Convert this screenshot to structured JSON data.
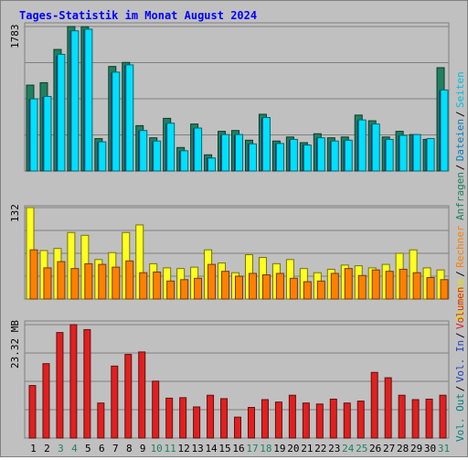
{
  "title": "Tages-Statistik im Monat August 2024",
  "colors": {
    "background": "#c0c0c0",
    "title": "#0000ff",
    "anfragen": "#208060",
    "dateien": "#00e0ff",
    "seiten": "#3060e0",
    "besuche": "#ffff20",
    "rechner": "#ff8000",
    "volumen": "#e02020",
    "weekend_day": "#208060",
    "weekday_day": "#000000"
  },
  "right_legend": {
    "top": [
      {
        "text": "Anfragen",
        "color": "#208060"
      },
      {
        "text": "Dateien",
        "color": "#0080c0"
      },
      {
        "text": "Seiten",
        "color": "#00c0e0"
      }
    ],
    "middle": [
      {
        "text": "Besuche",
        "color": "#e0e000"
      },
      {
        "text": "Rechner",
        "color": "#ff8000"
      }
    ],
    "bottom": [
      {
        "text": "Vol. Out",
        "color": "#008080"
      },
      {
        "text": "Vol. In",
        "color": "#2040c0"
      },
      {
        "text": "Volumen",
        "color": "#e02020"
      }
    ]
  },
  "chart_data": [
    {
      "type": "bar",
      "panel": "top",
      "ymax_label": "1783",
      "ylim": [
        0,
        1783
      ],
      "categories": [
        "1",
        "2",
        "3",
        "4",
        "5",
        "6",
        "7",
        "8",
        "9",
        "10",
        "11",
        "12",
        "13",
        "14",
        "15",
        "16",
        "17",
        "18",
        "19",
        "20",
        "21",
        "22",
        "23",
        "24",
        "25",
        "26",
        "27",
        "28",
        "29",
        "30",
        "31"
      ],
      "series": [
        {
          "name": "Anfragen",
          "values": [
            1060,
            1090,
            1500,
            1783,
            1780,
            400,
            1290,
            1340,
            560,
            410,
            650,
            290,
            580,
            200,
            490,
            500,
            380,
            700,
            370,
            420,
            350,
            460,
            410,
            420,
            690,
            620,
            420,
            490,
            450,
            390,
            1275
          ]
        },
        {
          "name": "Dateien",
          "values": [
            890,
            920,
            1440,
            1730,
            1750,
            360,
            1220,
            1310,
            500,
            370,
            590,
            250,
            530,
            160,
            450,
            450,
            335,
            660,
            340,
            390,
            320,
            410,
            370,
            380,
            630,
            580,
            390,
            440,
            450,
            400,
            1000
          ]
        },
        {
          "name": "Seiten",
          "values": [
            880,
            910,
            1420,
            1720,
            1740,
            350,
            1210,
            1300,
            490,
            360,
            580,
            240,
            520,
            160,
            440,
            440,
            330,
            650,
            330,
            380,
            320,
            400,
            360,
            370,
            620,
            570,
            380,
            430,
            440,
            390,
            990
          ]
        }
      ]
    },
    {
      "type": "bar",
      "panel": "middle",
      "ymax_label": "132",
      "ylim": [
        0,
        132
      ],
      "categories": [
        "1",
        "2",
        "3",
        "4",
        "5",
        "6",
        "7",
        "8",
        "9",
        "10",
        "11",
        "12",
        "13",
        "14",
        "15",
        "16",
        "17",
        "18",
        "19",
        "20",
        "21",
        "22",
        "23",
        "24",
        "25",
        "26",
        "27",
        "28",
        "29",
        "30",
        "31"
      ],
      "series": [
        {
          "name": "Besuche",
          "values": [
            132,
            70,
            73,
            96,
            92,
            57,
            67,
            96,
            107,
            51,
            45,
            44,
            46,
            71,
            52,
            38,
            64,
            60,
            51,
            57,
            44,
            38,
            43,
            49,
            48,
            45,
            50,
            66,
            71,
            45,
            42
          ]
        },
        {
          "name": "Rechner",
          "values": [
            71,
            45,
            54,
            44,
            51,
            50,
            46,
            55,
            38,
            39,
            26,
            28,
            30,
            50,
            40,
            33,
            37,
            35,
            37,
            30,
            25,
            26,
            37,
            44,
            34,
            42,
            40,
            43,
            38,
            31,
            28
          ]
        }
      ]
    },
    {
      "type": "bar",
      "panel": "bottom",
      "ymax_label": "23.32 MB",
      "ylim": [
        0,
        23.32
      ],
      "categories": [
        "1",
        "2",
        "3",
        "4",
        "5",
        "6",
        "7",
        "8",
        "9",
        "10",
        "11",
        "12",
        "13",
        "14",
        "15",
        "16",
        "17",
        "18",
        "19",
        "20",
        "21",
        "22",
        "23",
        "24",
        "25",
        "26",
        "27",
        "28",
        "29",
        "30",
        "31"
      ],
      "series": [
        {
          "name": "Volumen",
          "values": [
            10.8,
            15.3,
            21.7,
            23.32,
            22.3,
            7.2,
            14.8,
            17.2,
            17.7,
            11.7,
            8.2,
            8.3,
            6.4,
            8.8,
            8.1,
            4.3,
            6.3,
            7.9,
            7.4,
            8.8,
            7.2,
            7.0,
            8.0,
            7.2,
            7.6,
            13.5,
            12.4,
            8.8,
            7.9,
            8.0,
            8.8
          ]
        }
      ]
    }
  ],
  "days": [
    {
      "label": "1",
      "weekend": false
    },
    {
      "label": "2",
      "weekend": false
    },
    {
      "label": "3",
      "weekend": true
    },
    {
      "label": "4",
      "weekend": true
    },
    {
      "label": "5",
      "weekend": false
    },
    {
      "label": "6",
      "weekend": false
    },
    {
      "label": "7",
      "weekend": false
    },
    {
      "label": "8",
      "weekend": false
    },
    {
      "label": "9",
      "weekend": false
    },
    {
      "label": "10",
      "weekend": true
    },
    {
      "label": "11",
      "weekend": true
    },
    {
      "label": "12",
      "weekend": false
    },
    {
      "label": "13",
      "weekend": false
    },
    {
      "label": "14",
      "weekend": false
    },
    {
      "label": "15",
      "weekend": false
    },
    {
      "label": "16",
      "weekend": false
    },
    {
      "label": "17",
      "weekend": true
    },
    {
      "label": "18",
      "weekend": true
    },
    {
      "label": "19",
      "weekend": false
    },
    {
      "label": "20",
      "weekend": false
    },
    {
      "label": "21",
      "weekend": false
    },
    {
      "label": "22",
      "weekend": false
    },
    {
      "label": "23",
      "weekend": false
    },
    {
      "label": "24",
      "weekend": true
    },
    {
      "label": "25",
      "weekend": true
    },
    {
      "label": "26",
      "weekend": false
    },
    {
      "label": "27",
      "weekend": false
    },
    {
      "label": "28",
      "weekend": false
    },
    {
      "label": "29",
      "weekend": false
    },
    {
      "label": "30",
      "weekend": false
    },
    {
      "label": "31",
      "weekend": true
    }
  ]
}
